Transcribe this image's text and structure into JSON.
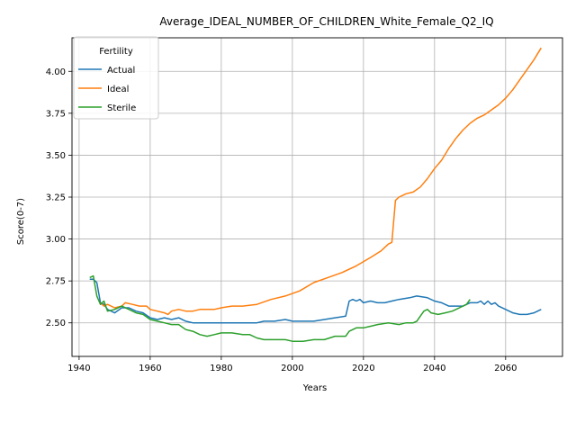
{
  "chart_data": {
    "type": "line",
    "title": "Average_IDEAL_NUMBER_OF_CHILDREN_White_Female_Q2_IQ",
    "xlabel": "Years",
    "ylabel": "Score(0-7)",
    "xlim": [
      1938,
      2076
    ],
    "ylim": [
      2.3,
      4.2
    ],
    "xticks": [
      1940,
      1960,
      1980,
      2000,
      2020,
      2040,
      2060
    ],
    "yticks": [
      2.5,
      2.75,
      3.0,
      3.25,
      3.5,
      3.75,
      4.0
    ],
    "xtick_labels": [
      "1940",
      "1960",
      "1980",
      "2000",
      "2020",
      "2040",
      "2060"
    ],
    "ytick_labels": [
      "2.50",
      "2.75",
      "3.00",
      "3.25",
      "3.50",
      "3.75",
      "4.00"
    ],
    "grid": true,
    "legend": {
      "title": "Fertility",
      "position": "top-left"
    },
    "series": [
      {
        "name": "Actual",
        "color": "#1f77b4",
        "points": [
          [
            1943,
            2.76
          ],
          [
            1944,
            2.76
          ],
          [
            1945,
            2.74
          ],
          [
            1946,
            2.62
          ],
          [
            1947,
            2.61
          ],
          [
            1948,
            2.58
          ],
          [
            1950,
            2.56
          ],
          [
            1952,
            2.59
          ],
          [
            1954,
            2.59
          ],
          [
            1956,
            2.57
          ],
          [
            1958,
            2.56
          ],
          [
            1960,
            2.53
          ],
          [
            1962,
            2.52
          ],
          [
            1964,
            2.53
          ],
          [
            1966,
            2.52
          ],
          [
            1968,
            2.53
          ],
          [
            1970,
            2.51
          ],
          [
            1972,
            2.5
          ],
          [
            1974,
            2.5
          ],
          [
            1976,
            2.5
          ],
          [
            1978,
            2.5
          ],
          [
            1980,
            2.5
          ],
          [
            1982,
            2.5
          ],
          [
            1985,
            2.5
          ],
          [
            1988,
            2.5
          ],
          [
            1990,
            2.5
          ],
          [
            1992,
            2.51
          ],
          [
            1995,
            2.51
          ],
          [
            1998,
            2.52
          ],
          [
            2000,
            2.51
          ],
          [
            2003,
            2.51
          ],
          [
            2006,
            2.51
          ],
          [
            2009,
            2.52
          ],
          [
            2012,
            2.53
          ],
          [
            2015,
            2.54
          ],
          [
            2016,
            2.63
          ],
          [
            2017,
            2.64
          ],
          [
            2018,
            2.63
          ],
          [
            2019,
            2.64
          ],
          [
            2020,
            2.62
          ],
          [
            2022,
            2.63
          ],
          [
            2024,
            2.62
          ],
          [
            2026,
            2.62
          ],
          [
            2028,
            2.63
          ],
          [
            2030,
            2.64
          ],
          [
            2033,
            2.65
          ],
          [
            2035,
            2.66
          ],
          [
            2038,
            2.65
          ],
          [
            2040,
            2.63
          ],
          [
            2042,
            2.62
          ],
          [
            2044,
            2.6
          ],
          [
            2046,
            2.6
          ],
          [
            2048,
            2.6
          ],
          [
            2050,
            2.62
          ],
          [
            2052,
            2.62
          ],
          [
            2053,
            2.63
          ],
          [
            2054,
            2.61
          ],
          [
            2055,
            2.63
          ],
          [
            2056,
            2.61
          ],
          [
            2057,
            2.62
          ],
          [
            2058,
            2.6
          ],
          [
            2060,
            2.58
          ],
          [
            2062,
            2.56
          ],
          [
            2064,
            2.55
          ],
          [
            2066,
            2.55
          ],
          [
            2068,
            2.56
          ],
          [
            2070,
            2.58
          ]
        ]
      },
      {
        "name": "Ideal",
        "color": "#ff7f0e",
        "points": [
          [
            1946,
            2.62
          ],
          [
            1947,
            2.6
          ],
          [
            1948,
            2.61
          ],
          [
            1950,
            2.59
          ],
          [
            1952,
            2.6
          ],
          [
            1953,
            2.62
          ],
          [
            1955,
            2.61
          ],
          [
            1957,
            2.6
          ],
          [
            1959,
            2.6
          ],
          [
            1960,
            2.58
          ],
          [
            1962,
            2.57
          ],
          [
            1964,
            2.56
          ],
          [
            1965,
            2.55
          ],
          [
            1966,
            2.57
          ],
          [
            1968,
            2.58
          ],
          [
            1970,
            2.57
          ],
          [
            1972,
            2.57
          ],
          [
            1974,
            2.58
          ],
          [
            1976,
            2.58
          ],
          [
            1978,
            2.58
          ],
          [
            1980,
            2.59
          ],
          [
            1983,
            2.6
          ],
          [
            1986,
            2.6
          ],
          [
            1990,
            2.61
          ],
          [
            1994,
            2.64
          ],
          [
            1998,
            2.66
          ],
          [
            2002,
            2.69
          ],
          [
            2006,
            2.74
          ],
          [
            2010,
            2.77
          ],
          [
            2014,
            2.8
          ],
          [
            2018,
            2.84
          ],
          [
            2022,
            2.89
          ],
          [
            2025,
            2.93
          ],
          [
            2027,
            2.97
          ],
          [
            2028,
            2.98
          ],
          [
            2029,
            3.23
          ],
          [
            2030,
            3.25
          ],
          [
            2032,
            3.27
          ],
          [
            2034,
            3.28
          ],
          [
            2036,
            3.31
          ],
          [
            2038,
            3.36
          ],
          [
            2040,
            3.42
          ],
          [
            2042,
            3.47
          ],
          [
            2044,
            3.54
          ],
          [
            2046,
            3.6
          ],
          [
            2048,
            3.65
          ],
          [
            2050,
            3.69
          ],
          [
            2052,
            3.72
          ],
          [
            2054,
            3.74
          ],
          [
            2056,
            3.77
          ],
          [
            2058,
            3.8
          ],
          [
            2060,
            3.84
          ],
          [
            2062,
            3.89
          ],
          [
            2064,
            3.95
          ],
          [
            2066,
            4.01
          ],
          [
            2068,
            4.07
          ],
          [
            2070,
            4.14
          ]
        ]
      },
      {
        "name": "Sterile",
        "color": "#2ca02c",
        "points": [
          [
            1943,
            2.77
          ],
          [
            1944,
            2.78
          ],
          [
            1945,
            2.66
          ],
          [
            1946,
            2.61
          ],
          [
            1947,
            2.63
          ],
          [
            1948,
            2.57
          ],
          [
            1950,
            2.58
          ],
          [
            1952,
            2.6
          ],
          [
            1954,
            2.58
          ],
          [
            1956,
            2.56
          ],
          [
            1958,
            2.55
          ],
          [
            1960,
            2.52
          ],
          [
            1962,
            2.51
          ],
          [
            1964,
            2.5
          ],
          [
            1966,
            2.49
          ],
          [
            1968,
            2.49
          ],
          [
            1970,
            2.46
          ],
          [
            1972,
            2.45
          ],
          [
            1974,
            2.43
          ],
          [
            1976,
            2.42
          ],
          [
            1978,
            2.43
          ],
          [
            1980,
            2.44
          ],
          [
            1983,
            2.44
          ],
          [
            1986,
            2.43
          ],
          [
            1988,
            2.43
          ],
          [
            1990,
            2.41
          ],
          [
            1992,
            2.4
          ],
          [
            1995,
            2.4
          ],
          [
            1998,
            2.4
          ],
          [
            2000,
            2.39
          ],
          [
            2003,
            2.39
          ],
          [
            2006,
            2.4
          ],
          [
            2009,
            2.4
          ],
          [
            2012,
            2.42
          ],
          [
            2015,
            2.42
          ],
          [
            2016,
            2.45
          ],
          [
            2018,
            2.47
          ],
          [
            2020,
            2.47
          ],
          [
            2022,
            2.48
          ],
          [
            2024,
            2.49
          ],
          [
            2027,
            2.5
          ],
          [
            2030,
            2.49
          ],
          [
            2032,
            2.5
          ],
          [
            2034,
            2.5
          ],
          [
            2035,
            2.51
          ],
          [
            2036,
            2.54
          ],
          [
            2037,
            2.57
          ],
          [
            2038,
            2.58
          ],
          [
            2039,
            2.56
          ],
          [
            2041,
            2.55
          ],
          [
            2043,
            2.56
          ],
          [
            2045,
            2.57
          ],
          [
            2047,
            2.59
          ],
          [
            2049,
            2.61
          ],
          [
            2050,
            2.64
          ]
        ]
      }
    ]
  }
}
